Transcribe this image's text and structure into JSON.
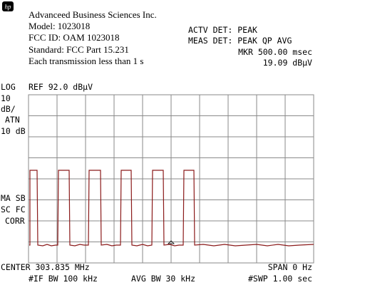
{
  "logo": "hp",
  "header": {
    "company": "Advanceed Business Sciences Inc.",
    "model": "Model: 1023018",
    "fcc_id": "FCC ID: OAM 1023018",
    "standard": "Standard: FCC Part 15.231",
    "note": "Each transmission less than 1 s"
  },
  "status": {
    "actv_det": "ACTV DET: PEAK",
    "meas_det": "MEAS DET: PEAK QP AVG",
    "marker_time": "MKR 500.00 msec",
    "marker_level": "19.09 dBµV"
  },
  "scale": {
    "log": "LOG",
    "ref": "REF 92.0 dBµV",
    "div": "10",
    "unit": "dB/",
    "atn": "ATN",
    "atn_value": "10 dB"
  },
  "flags": {
    "line1": "MA SB",
    "line2": "SC FC",
    "line3": "CORR"
  },
  "footer": {
    "center": "CENTER 303.835 MHz",
    "span": "SPAN 0 Hz",
    "if_bw": "#IF BW 100 kHz",
    "avg_bw": "AVG BW 30 kHz",
    "sweep": "#SWP 1.00  sec"
  }
}
